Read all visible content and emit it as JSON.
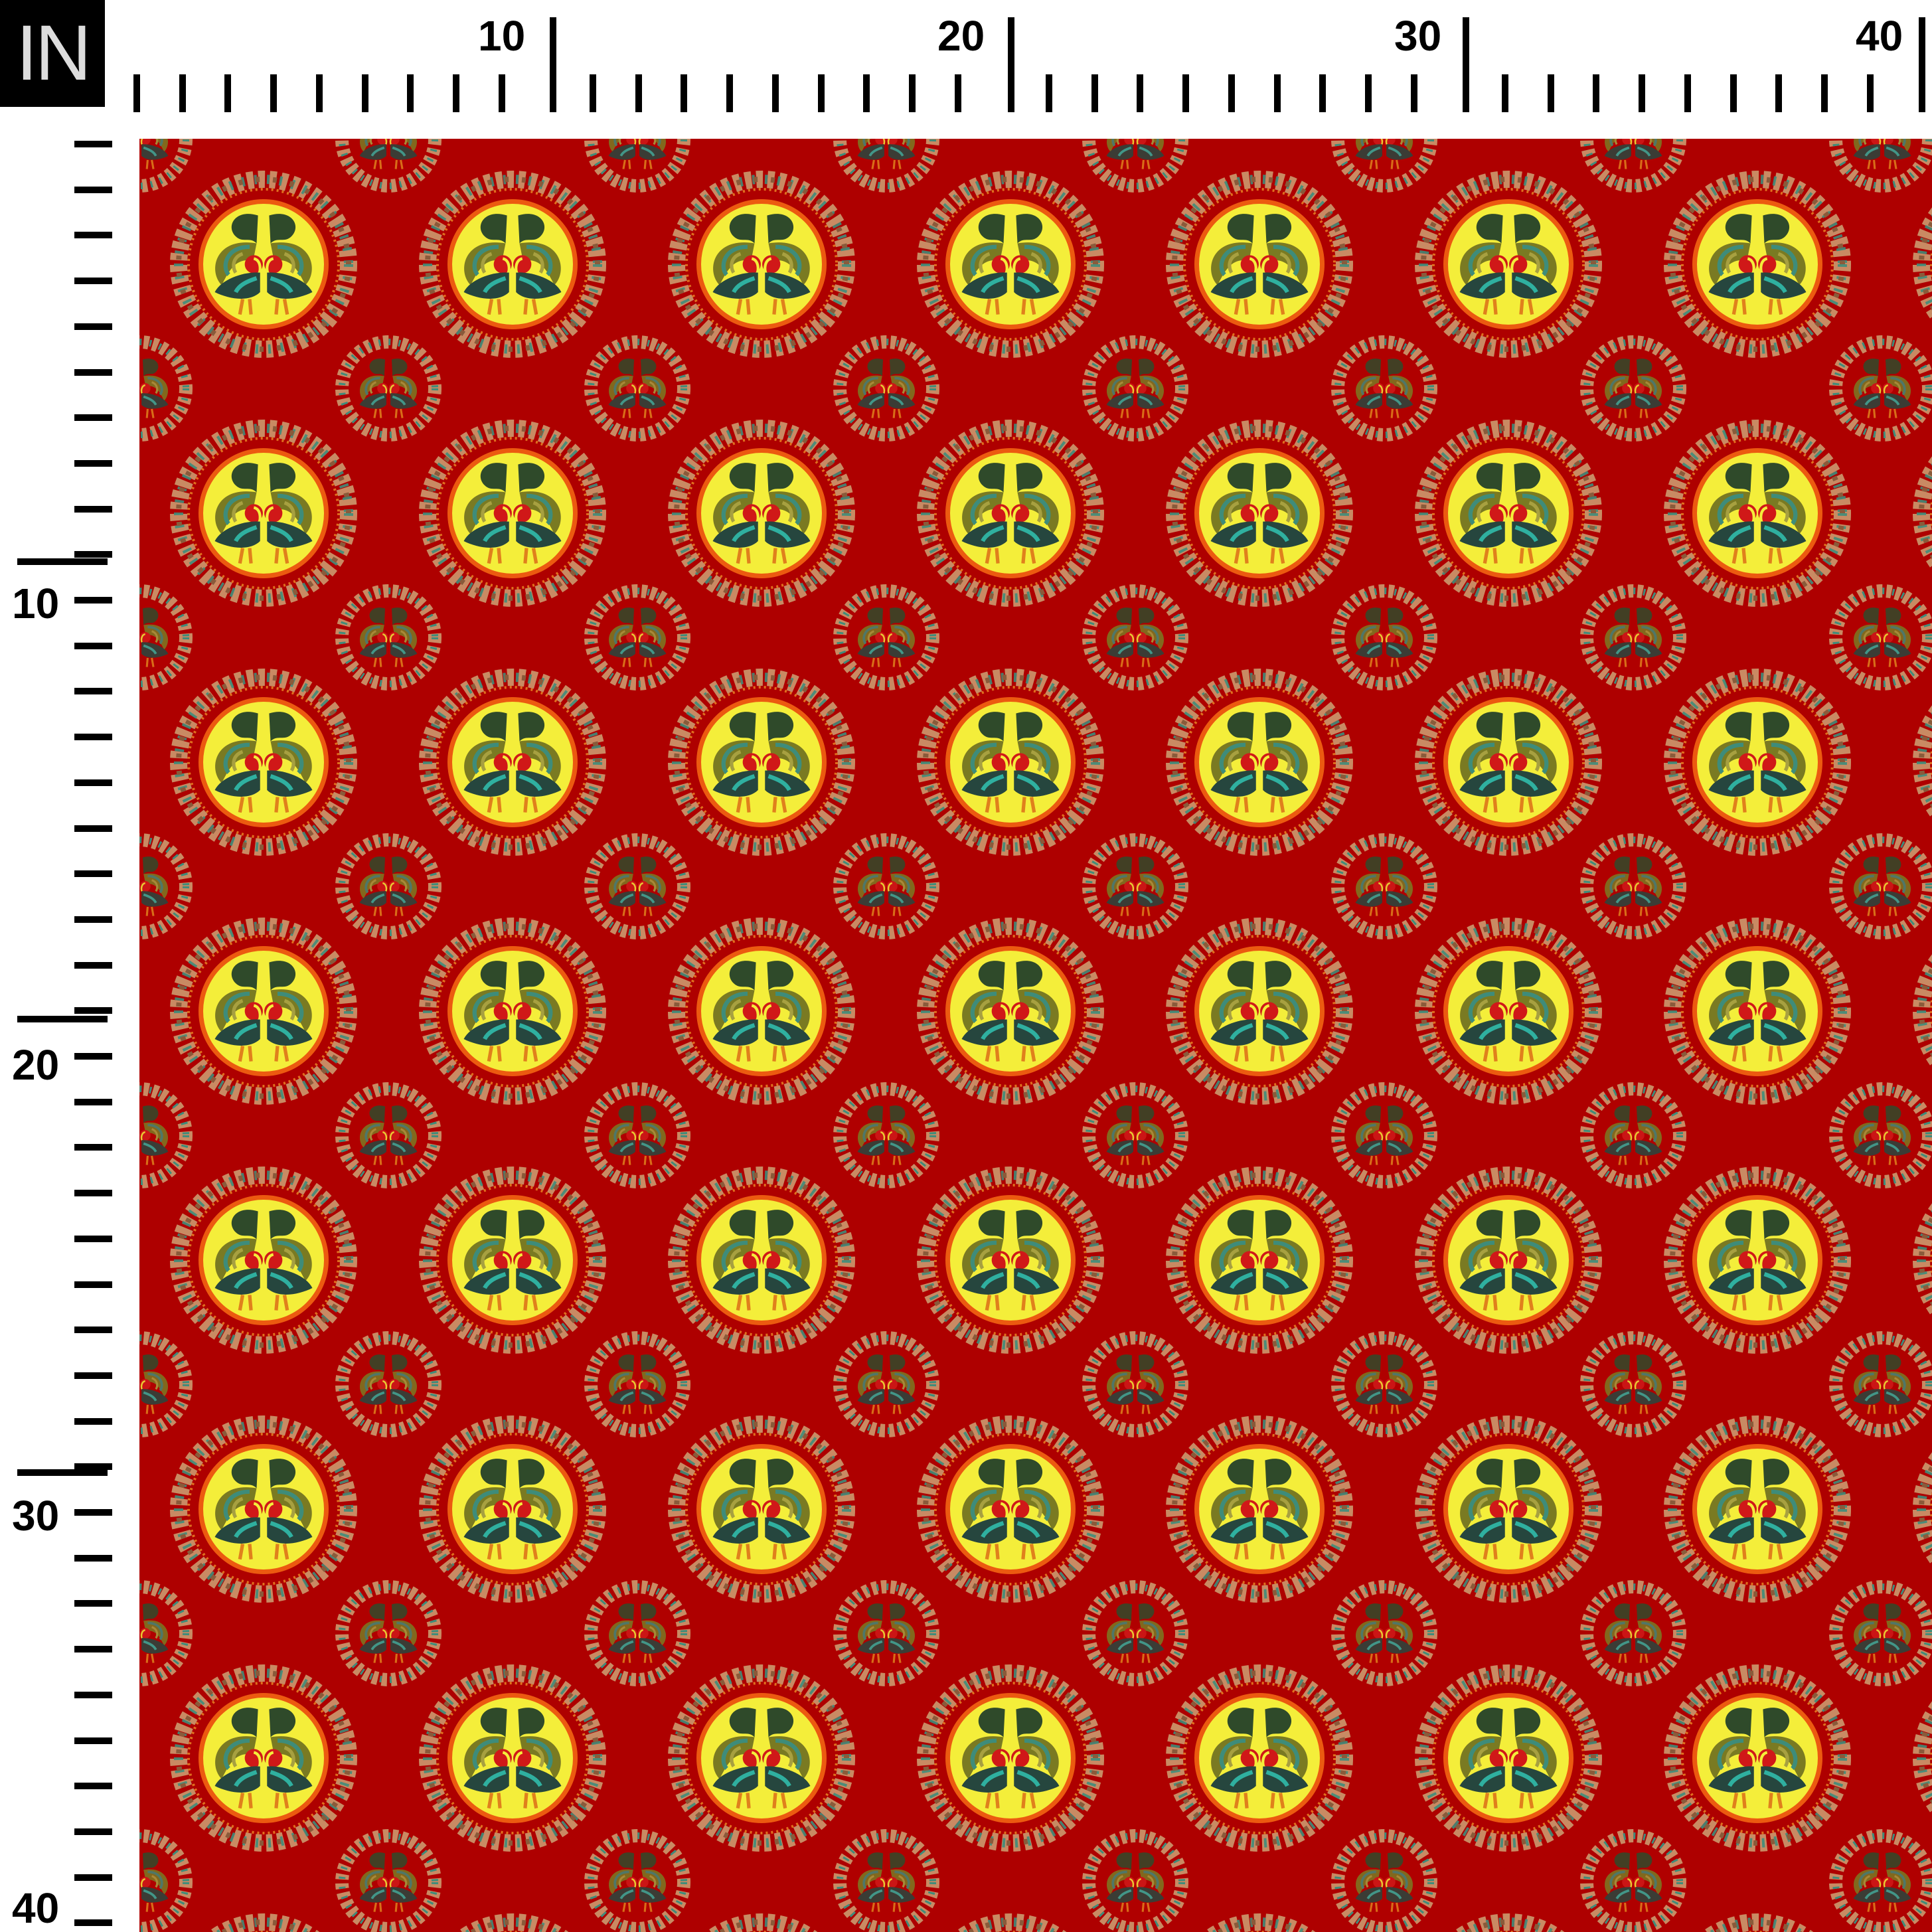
{
  "ruler": {
    "unit": "IN",
    "top_labels": [
      "10",
      "20",
      "30",
      "40"
    ],
    "left_labels": [
      "10",
      "20",
      "30",
      "40"
    ]
  },
  "colors": {
    "background": "#ae0000",
    "medallion_yellow": "#f4ee3a",
    "ring_orange": "#ec5a10",
    "wreath_tan": "#c98a63",
    "wreath_teal": "#3e8c7a",
    "bird_green": "#2f4a2a",
    "bird_olive": "#7a7a22",
    "bird_red": "#d01818"
  },
  "pattern": {
    "motif": "paired roosters in circular wreath medallions",
    "large_medallion_icon": "rooster-pair-icon",
    "small_medallion_icon": "rooster-pair-icon"
  }
}
